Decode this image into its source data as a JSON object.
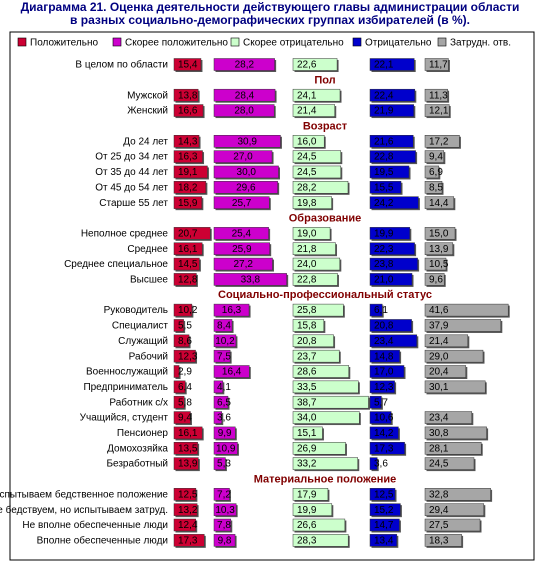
{
  "chart_data": {
    "type": "bar",
    "title": "Диаграмма 21. Оценка деятельности действующего главы администрации области",
    "subtitle": "в разных социально-демографических группах избирателей (в %).",
    "categories": [
      "В целом по области",
      "Пол",
      "Мужской",
      "Женский",
      "Возраст",
      "До 24 лет",
      "От 25 до 34 лет",
      "От 35 до 44 лет",
      "От 45 до 54 лет",
      "Старше 55 лет",
      "Образование",
      "Неполное среднее",
      "Среднее",
      "Среднее специальное",
      "Высшее",
      "Социально-профессиональный статус",
      "Руководитель",
      "Специалист",
      "Служащий",
      "Рабочий",
      "Военнослужащий",
      "Предприниматель",
      "Работник с/х",
      "Учащийся, студент",
      "Пенсионер",
      "Домохозяйка",
      "Безработный",
      "Материальное положение",
      "Испытываем бедственное положение",
      "Не бедствуем, но испытываем затруд.",
      "Не вполне обеспеченные люди",
      "Вполне обеспеченные люди"
    ],
    "series": [
      {
        "name": "Положительно",
        "color": "#cc0033",
        "values": [
          15.4,
          null,
          13.8,
          16.6,
          null,
          14.3,
          16.3,
          19.1,
          18.2,
          15.9,
          null,
          20.7,
          16.1,
          14.5,
          12.8,
          null,
          10.2,
          5.5,
          8.6,
          12.3,
          2.9,
          6.4,
          5.8,
          9.4,
          16.1,
          13.5,
          13.9,
          null,
          12.5,
          13.2,
          12.4,
          17.3
        ],
        "value_labels": [
          "15,4",
          null,
          "13,8",
          "16,6",
          null,
          "14,3",
          "16,3",
          "19,1",
          "18,2",
          "15,9",
          null,
          "20,7",
          "16,1",
          "14,5",
          "12,8",
          null,
          "10,2",
          "5,5",
          "8,6",
          "12,3",
          "2,9",
          "6,4",
          "5,8",
          "9,4",
          "16,1",
          "13,5",
          "13,9",
          null,
          "12,5",
          "13,2",
          "12,4",
          "17,3"
        ]
      },
      {
        "name": "Скорее положительно",
        "color": "#cc00cc",
        "values": [
          28.2,
          null,
          28.4,
          28.0,
          null,
          30.9,
          27.0,
          30.0,
          29.6,
          25.7,
          null,
          25.4,
          25.9,
          27.2,
          33.8,
          null,
          16.3,
          8.4,
          10.2,
          7.5,
          16.4,
          4.1,
          6.5,
          3.6,
          9.9,
          10.9,
          5.3,
          null,
          7.2,
          10.3,
          7.8,
          9.8
        ],
        "value_labels": [
          "28,2",
          null,
          "28,4",
          "28,0",
          null,
          "30,9",
          "27,0",
          "30,0",
          "29,6",
          "25,7",
          null,
          "25,4",
          "25,9",
          "27,2",
          "33,8",
          null,
          "16,3",
          "8,4",
          "10,2",
          "7,5",
          "16,4",
          "4,1",
          "6,5",
          "3,6",
          "9,9",
          "10,9",
          "5,3",
          null,
          "7,2",
          "10,3",
          "7,8",
          "9,8"
        ]
      },
      {
        "name": "Скорее отрицательно",
        "color": "#ccffcc",
        "values": [
          22.6,
          null,
          24.1,
          21.4,
          null,
          16.0,
          24.5,
          24.5,
          28.2,
          19.8,
          null,
          19.0,
          21.8,
          24.0,
          22.8,
          null,
          25.8,
          15.8,
          20.8,
          23.7,
          28.6,
          33.5,
          38.7,
          34.0,
          15.1,
          26.9,
          33.2,
          null,
          17.9,
          19.9,
          26.6,
          28.3
        ],
        "value_labels": [
          "22,6",
          null,
          "24,1",
          "21,4",
          null,
          "16,0",
          "24,5",
          "24,5",
          "28,2",
          "19,8",
          null,
          "19,0",
          "21,8",
          "24,0",
          "22,8",
          null,
          "25,8",
          "15,8",
          "20,8",
          "23,7",
          "28,6",
          "33,5",
          "38,7",
          "34,0",
          "15,1",
          "26,9",
          "33,2",
          null,
          "17,9",
          "19,9",
          "26,6",
          "28,3"
        ]
      },
      {
        "name": "Отрицательно",
        "color": "#0000cc",
        "values": [
          22.1,
          null,
          22.4,
          21.9,
          null,
          21.6,
          22.8,
          19.5,
          15.5,
          24.2,
          null,
          19.9,
          22.3,
          23.8,
          21.0,
          null,
          6.1,
          20.8,
          23.4,
          14.8,
          17.0,
          12.3,
          5.7,
          10.6,
          14.2,
          17.3,
          3.6,
          null,
          12.5,
          15.2,
          14.7,
          13.4
        ],
        "value_labels": [
          "22,1",
          null,
          "22,4",
          "21,9",
          null,
          "21,6",
          "22,8",
          "19,5",
          "15,5",
          "24,2",
          null,
          "19,9",
          "22,3",
          "23,8",
          "21,0",
          null,
          "6,1",
          "20,8",
          "23,4",
          "14,8",
          "17,0",
          "12,3",
          "5,7",
          "10,6",
          "14,2",
          "17,3",
          "3,6",
          null,
          "12,5",
          "15,2",
          "14,7",
          "13,4"
        ]
      },
      {
        "name": "Затрудн. отв.",
        "color": "#a6a6a6",
        "values": [
          11.7,
          null,
          11.3,
          12.1,
          null,
          17.2,
          9.4,
          6.9,
          8.5,
          14.4,
          null,
          15.0,
          13.9,
          10.5,
          9.6,
          null,
          41.6,
          37.9,
          21.4,
          29.0,
          20.4,
          30.1,
          null,
          23.4,
          30.8,
          28.1,
          24.5,
          null,
          32.8,
          29.4,
          27.5,
          18.3
        ],
        "value_labels": [
          "11,7",
          null,
          "11,3",
          "12,1",
          null,
          "17,2",
          "9,4",
          "6,9",
          "8,5",
          "14,4",
          null,
          "15,0",
          "13,9",
          "10,5",
          "9,6",
          null,
          "41,6",
          "37,9",
          "21,4",
          "29,0",
          "20,4",
          "30,1",
          null,
          "23,4",
          "30,8",
          "28,1",
          "24,5",
          null,
          "32,8",
          "29,4",
          "27,5",
          "18,3"
        ]
      }
    ]
  }
}
